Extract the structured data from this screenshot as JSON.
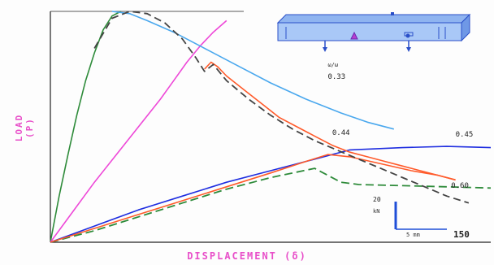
{
  "chart_data": {
    "type": "line",
    "title": "",
    "xlabel": "DISPLACEMENT (δ)",
    "ylabel": "LOAD (P)",
    "xlim": [
      0,
      100
    ],
    "ylim": [
      0,
      100
    ],
    "grid": false,
    "series": [
      {
        "color": "#2e8b3a",
        "dash": "",
        "x": [
          0,
          2,
          4,
          6,
          8,
          10,
          12,
          14,
          16
        ],
        "y": [
          0,
          20,
          38,
          55,
          70,
          82,
          92,
          98,
          100
        ]
      },
      {
        "color": "#2e8b3a",
        "dash": "10,5",
        "x": [
          0,
          10,
          20,
          30,
          40,
          50,
          60,
          66,
          70,
          80,
          90,
          100
        ],
        "y": [
          0,
          5,
          11,
          17,
          23,
          28,
          32,
          26,
          25,
          24.5,
          24,
          23.5
        ]
      },
      {
        "color": "#ee48d8",
        "dash": "",
        "x": [
          0,
          5,
          10,
          15,
          20,
          25,
          28,
          31,
          34,
          37,
          40
        ],
        "y": [
          0,
          13,
          26,
          38,
          50,
          62,
          70,
          78,
          85,
          91,
          96
        ]
      },
      {
        "color": "#1f2ee0",
        "dash": "",
        "x": [
          0,
          10,
          20,
          30,
          40,
          50,
          60,
          68,
          80,
          90,
          100
        ],
        "y": [
          0,
          7,
          14,
          20,
          26,
          31,
          36,
          40,
          41,
          41.5,
          41
        ]
      },
      {
        "color": "#4aa8ee",
        "dash": "",
        "x": [
          14,
          18,
          22,
          28,
          34,
          42,
          50,
          58,
          66,
          72,
          78
        ],
        "y": [
          100,
          99,
          96,
          91,
          85,
          77,
          69,
          62,
          56,
          52,
          49
        ]
      },
      {
        "color": "#ff5a2a",
        "dash": "",
        "x": [
          0,
          10,
          20,
          30,
          40,
          50,
          58,
          63,
          68,
          75,
          82,
          88,
          92
        ],
        "y": [
          0,
          6,
          12,
          18,
          24,
          30,
          35,
          38,
          37,
          34,
          31,
          29,
          27
        ]
      },
      {
        "color": "#ff5a2a",
        "dash": "",
        "x": [
          35,
          36.5,
          38,
          40,
          44,
          48,
          52,
          56,
          60,
          64,
          68,
          72,
          76,
          80,
          84,
          88,
          92
        ],
        "y": [
          75,
          78,
          76,
          72,
          66,
          60,
          54,
          50,
          46,
          42,
          39,
          37,
          35,
          33,
          31,
          29,
          27
        ]
      },
      {
        "color": "#444444",
        "dash": "9,5",
        "x": [
          10,
          14,
          18,
          22,
          26,
          30,
          33,
          35,
          37,
          40,
          45,
          50,
          55,
          60,
          65,
          70,
          75,
          80,
          85,
          90,
          95
        ],
        "y": [
          84,
          97,
          100,
          99,
          95,
          88,
          80,
          74,
          77,
          70,
          62,
          55,
          49,
          44,
          40,
          36,
          32,
          28,
          24,
          20,
          17
        ]
      }
    ],
    "curve_labels": [
      {
        "text": "ω/ω",
        "x": 63,
        "y": 76,
        "small": true
      },
      {
        "text": "0.33",
        "x": 63,
        "y": 71,
        "small": false
      },
      {
        "text": "0.44",
        "x": 64,
        "y": 47,
        "small": false
      },
      {
        "text": "0.45",
        "x": 92,
        "y": 46,
        "small": false
      },
      {
        "text": "0.60",
        "x": 91,
        "y": 24,
        "small": false
      }
    ],
    "scale_box": {
      "value_top": "20",
      "value_mid": "kN",
      "value_bottom": "5 mm",
      "value_right": "150"
    }
  }
}
